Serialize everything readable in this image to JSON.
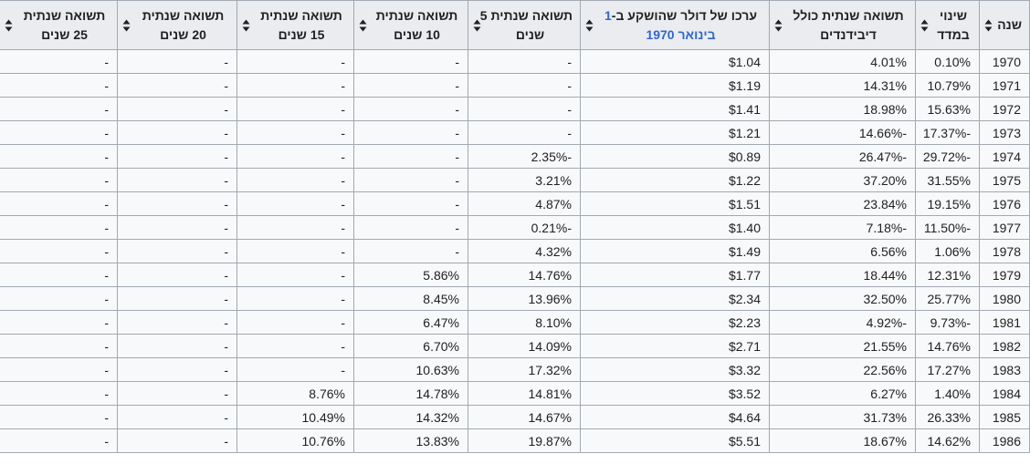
{
  "colors": {
    "header_bg": "#eaecf0",
    "cell_bg": "#f8f9fa",
    "border": "#a2a9b1",
    "text": "#202122",
    "link": "#3366cc"
  },
  "icons": {
    "sort": "sort-arrows-up-down"
  },
  "table": {
    "headers": [
      {
        "id": "year",
        "line1": "שנה",
        "line2": ""
      },
      {
        "id": "index-change",
        "line1": "שינוי",
        "line2": "במדד"
      },
      {
        "id": "total-return-dividends",
        "line1": "תשואה שנתית כולל",
        "line2": "דיבידנדים"
      },
      {
        "id": "dollar-value",
        "line1_prefix": "ערכו של דולר שהושקע ב-",
        "line1_link": "1",
        "line2_link": "בינואר 1970"
      },
      {
        "id": "return-5y",
        "line1": "תשואה שנתית 5",
        "line2": "שנים"
      },
      {
        "id": "return-10y",
        "line1": "תשואה שנתית",
        "line2": "10 שנים"
      },
      {
        "id": "return-15y",
        "line1": "תשואה שנתית",
        "line2": "15 שנים"
      },
      {
        "id": "return-20y",
        "line1": "תשואה שנתית",
        "line2": "20 שנים"
      },
      {
        "id": "return-25y",
        "line1": "תשואה שנתית",
        "line2": "25 שנים"
      }
    ],
    "rows": [
      [
        "1970",
        "0.10%",
        "4.01%",
        "$1.04",
        "-",
        "-",
        "-",
        "-",
        "-"
      ],
      [
        "1971",
        "10.79%",
        "14.31%",
        "$1.19",
        "-",
        "-",
        "-",
        "-",
        "-"
      ],
      [
        "1972",
        "15.63%",
        "18.98%",
        "$1.41",
        "-",
        "-",
        "-",
        "-",
        "-"
      ],
      [
        "1973",
        "-17.37%",
        "-14.66%",
        "$1.21",
        "-",
        "-",
        "-",
        "-",
        "-"
      ],
      [
        "1974",
        "-29.72%",
        "-26.47%",
        "$0.89",
        "-2.35%",
        "-",
        "-",
        "-",
        "-"
      ],
      [
        "1975",
        "31.55%",
        "37.20%",
        "$1.22",
        "3.21%",
        "-",
        "-",
        "-",
        "-"
      ],
      [
        "1976",
        "19.15%",
        "23.84%",
        "$1.51",
        "4.87%",
        "-",
        "-",
        "-",
        "-"
      ],
      [
        "1977",
        "-11.50%",
        "-7.18%",
        "$1.40",
        "-0.21%",
        "-",
        "-",
        "-",
        "-"
      ],
      [
        "1978",
        "1.06%",
        "6.56%",
        "$1.49",
        "4.32%",
        "-",
        "-",
        "-",
        "-"
      ],
      [
        "1979",
        "12.31%",
        "18.44%",
        "$1.77",
        "14.76%",
        "5.86%",
        "-",
        "-",
        "-"
      ],
      [
        "1980",
        "25.77%",
        "32.50%",
        "$2.34",
        "13.96%",
        "8.45%",
        "-",
        "-",
        "-"
      ],
      [
        "1981",
        "-9.73%",
        "-4.92%",
        "$2.23",
        "8.10%",
        "6.47%",
        "-",
        "-",
        "-"
      ],
      [
        "1982",
        "14.76%",
        "21.55%",
        "$2.71",
        "14.09%",
        "6.70%",
        "-",
        "-",
        "-"
      ],
      [
        "1983",
        "17.27%",
        "22.56%",
        "$3.32",
        "17.32%",
        "10.63%",
        "-",
        "-",
        "-"
      ],
      [
        "1984",
        "1.40%",
        "6.27%",
        "$3.52",
        "14.81%",
        "14.78%",
        "8.76%",
        "-",
        "-"
      ],
      [
        "1985",
        "26.33%",
        "31.73%",
        "$4.64",
        "14.67%",
        "14.32%",
        "10.49%",
        "-",
        "-"
      ],
      [
        "1986",
        "14.62%",
        "18.67%",
        "$5.51",
        "19.87%",
        "13.83%",
        "10.76%",
        "-",
        "-"
      ]
    ]
  }
}
